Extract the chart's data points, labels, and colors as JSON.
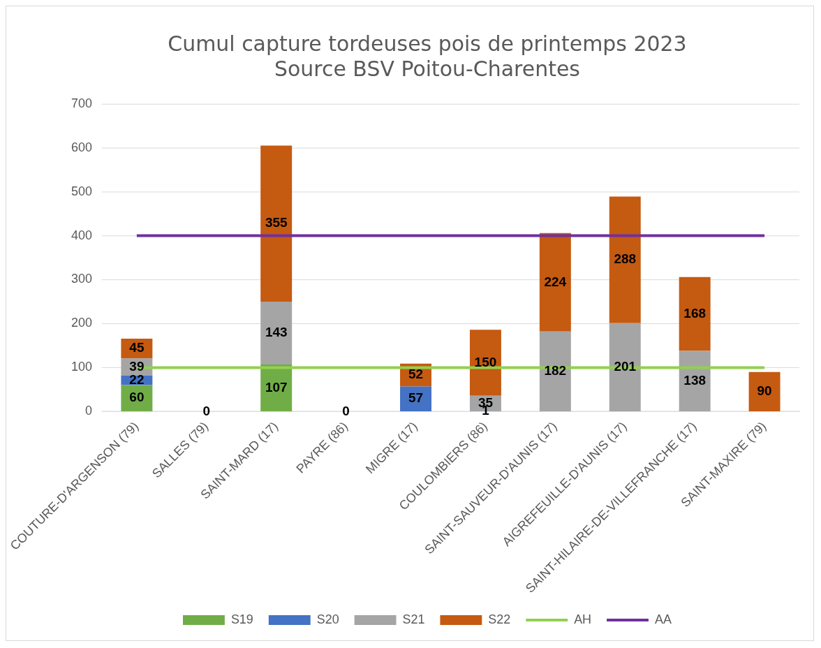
{
  "chart_data": {
    "type": "bar",
    "title": "Cumul capture tordeuses pois de printemps 2023",
    "subtitle": "Source BSV Poitou-Charentes",
    "categories": [
      "COUTURE-D'ARGENSON (79)",
      "SALLES (79)",
      "SAINT-MARD (17)",
      "PAYRE (86)",
      "MIGRE (17)",
      "COULOMBIERS (86)",
      "SAINT-SAUVEUR-D'AUNIS (17)",
      "AIGREFEUILLE-D'AUNIS (17)",
      "SAINT-HILAIRE-DE-VILLEFRANCHE (17)",
      "SAINT-MAXIRE (79)"
    ],
    "stacked": true,
    "series": [
      {
        "name": "S19",
        "color": "#70ad47",
        "values": [
          60,
          0,
          107,
          0,
          0,
          0,
          0,
          0,
          0,
          0
        ],
        "value_labels": [
          "60",
          null,
          "107",
          null,
          null,
          null,
          null,
          null,
          null,
          null
        ]
      },
      {
        "name": "S20",
        "color": "#4472c4",
        "values": [
          22,
          0,
          0,
          0,
          57,
          1,
          0,
          0,
          0,
          0
        ],
        "value_labels": [
          "22",
          null,
          null,
          null,
          "57",
          "1",
          null,
          null,
          null,
          null
        ]
      },
      {
        "name": "S21",
        "color": "#a5a5a5",
        "values": [
          39,
          0,
          143,
          0,
          0,
          35,
          182,
          201,
          138,
          0
        ],
        "value_labels": [
          "39",
          null,
          "143",
          null,
          null,
          "35",
          "182",
          "201",
          "138",
          null
        ]
      },
      {
        "name": "S22",
        "color": "#c55a11",
        "values": [
          45,
          0,
          355,
          0,
          52,
          150,
          224,
          288,
          168,
          90
        ],
        "value_labels": [
          "45",
          "0",
          "355",
          "0",
          "52",
          "150",
          "224",
          "288",
          "168",
          "90"
        ]
      },
      {
        "name": "AH",
        "type": "line",
        "color": "#92d050",
        "values": [
          100,
          100,
          100,
          100,
          100,
          100,
          100,
          100,
          100,
          100
        ]
      },
      {
        "name": "AA",
        "type": "line",
        "color": "#7030a0",
        "values": [
          400,
          400,
          400,
          400,
          400,
          400,
          400,
          400,
          400,
          400
        ]
      }
    ],
    "ylim": [
      0,
      700
    ],
    "yticks": [
      0,
      100,
      200,
      300,
      400,
      500,
      600,
      700
    ],
    "grid": "y",
    "legend": "bottom",
    "marker": "none",
    "line_style": "solid"
  }
}
